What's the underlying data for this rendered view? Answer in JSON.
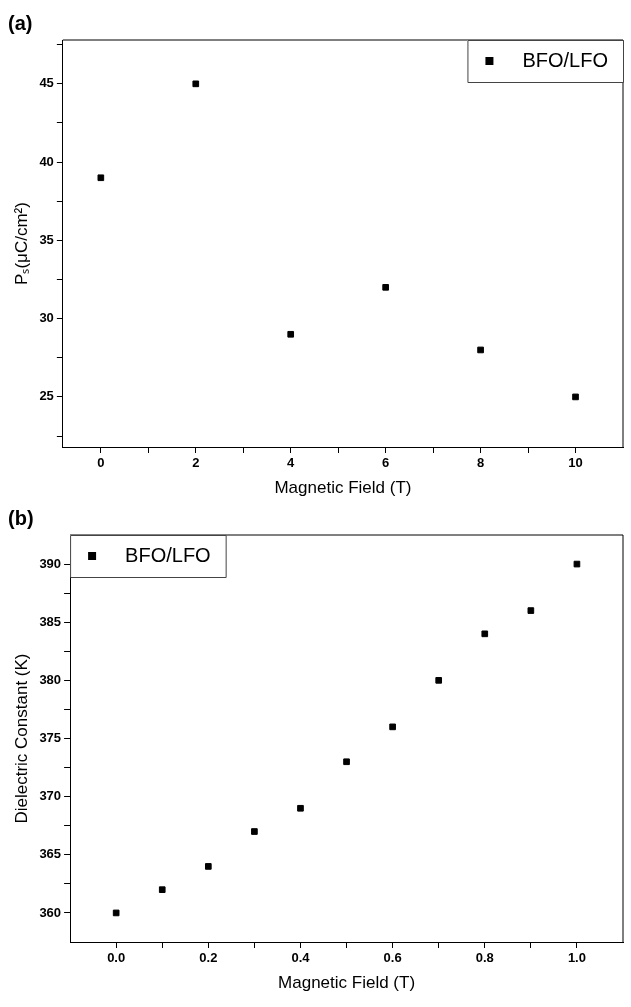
{
  "chart_data": [
    {
      "type": "scatter",
      "title": "(a)",
      "xlabel": "Magnetic Field (T)",
      "ylabel": "Pₛ(μC/cm²)",
      "x": [
        0,
        2,
        4,
        6,
        8,
        10
      ],
      "series": [
        {
          "name": "BFO/LFO",
          "color": "#000000",
          "values": [
            39,
            45,
            29,
            32,
            28,
            25
          ]
        }
      ],
      "xlim": [
        -0.8,
        11
      ],
      "xticks": [
        0,
        {
          "value": 1,
          "label": null
        },
        2,
        {
          "value": 3,
          "label": null
        },
        4,
        {
          "value": 5,
          "label": null
        },
        6,
        {
          "value": 7,
          "label": null
        },
        8,
        {
          "value": 9,
          "label": null
        },
        10
      ],
      "ylim": [
        21.8,
        47.8
      ],
      "yticks": [
        {
          "value": 22.5,
          "label": null
        },
        25,
        {
          "value": 27.5,
          "label": null
        },
        30,
        {
          "value": 32.5,
          "label": null
        },
        35,
        {
          "value": 37.5,
          "label": null
        },
        40,
        {
          "value": 42.5,
          "label": null
        },
        45,
        {
          "value": 47.5,
          "label": null
        }
      ],
      "grid": false,
      "legend": "top right",
      "marker": "square"
    },
    {
      "type": "scatter",
      "title": "(b)",
      "xlabel": "Magnetic Field (T)",
      "ylabel": "Dielectric Constant (K)",
      "x": [
        0,
        0.1,
        0.2,
        0.3,
        0.4,
        0.5,
        0.6,
        0.7,
        0.8,
        0.9,
        1.0
      ],
      "series": [
        {
          "name": "BFO/LFO",
          "color": "#000000",
          "values": [
            360,
            362,
            364,
            367,
            369,
            373,
            376,
            380,
            384,
            386,
            390
          ]
        }
      ],
      "xlim": [
        -0.1,
        1.1
      ],
      "xticks": [
        {
          "value": 0,
          "label": "0.0"
        },
        {
          "value": 0.1,
          "label": null
        },
        {
          "value": 0.2,
          "label": "0.2"
        },
        {
          "value": 0.3,
          "label": null
        },
        {
          "value": 0.4,
          "label": "0.4"
        },
        {
          "value": 0.5,
          "label": null
        },
        {
          "value": 0.6,
          "label": "0.6"
        },
        {
          "value": 0.7,
          "label": null
        },
        {
          "value": 0.8,
          "label": "0.8"
        },
        {
          "value": 0.9,
          "label": null
        },
        {
          "value": 1.0,
          "label": "1.0"
        }
      ],
      "ylim": [
        357.5,
        392.5
      ],
      "yticks": [
        360,
        {
          "value": 362.5,
          "label": null
        },
        365,
        {
          "value": 367.5,
          "label": null
        },
        370,
        {
          "value": 372.5,
          "label": null
        },
        375,
        {
          "value": 377.5,
          "label": null
        },
        380,
        {
          "value": 382.5,
          "label": null
        },
        385,
        {
          "value": 387.5,
          "label": null
        },
        390
      ],
      "grid": false,
      "legend": "top left",
      "marker": "square"
    }
  ]
}
